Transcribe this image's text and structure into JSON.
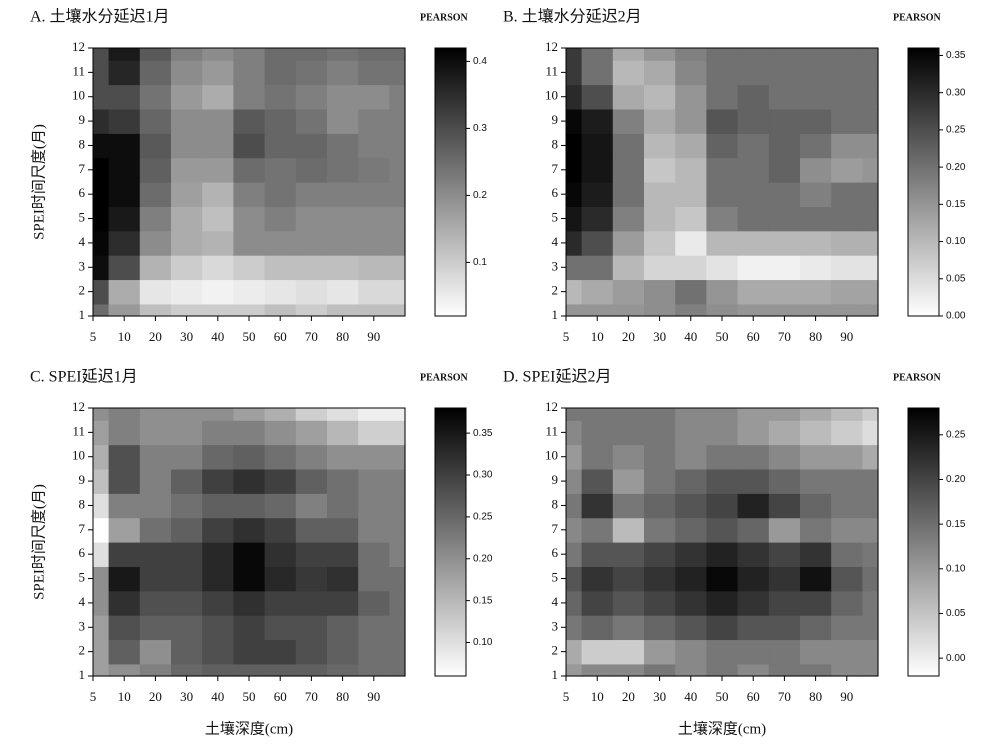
{
  "chart_data": [
    {
      "type": "heatmap",
      "title": "A. 土壤水分延迟1月",
      "colorbar_title": "PEARSON",
      "ylabel": "SPEI时间尺度(月)",
      "categories": [
        5,
        10,
        20,
        30,
        40,
        50,
        60,
        70,
        80,
        90,
        null
      ],
      "y": [
        1,
        2,
        3,
        4,
        5,
        6,
        7,
        8,
        9,
        10,
        11,
        12
      ],
      "ylim": [
        1,
        12
      ],
      "yticks": [
        1,
        2,
        3,
        4,
        5,
        6,
        7,
        8,
        9,
        10,
        11,
        12
      ],
      "zlim": [
        0.02,
        0.42
      ],
      "zticks": [
        0.1,
        0.2,
        0.3,
        0.4
      ],
      "values": [
        [
          0.25,
          0.18,
          0.12,
          0.1,
          0.1,
          0.1,
          0.12,
          0.1,
          0.12,
          0.12,
          0.12
        ],
        [
          0.3,
          0.15,
          0.06,
          0.05,
          0.04,
          0.05,
          0.06,
          0.07,
          0.06,
          0.08,
          0.08
        ],
        [
          0.4,
          0.3,
          0.14,
          0.1,
          0.08,
          0.1,
          0.12,
          0.12,
          0.12,
          0.13,
          0.13
        ],
        [
          0.41,
          0.35,
          0.2,
          0.15,
          0.14,
          0.2,
          0.2,
          0.2,
          0.2,
          0.2,
          0.2
        ],
        [
          0.42,
          0.38,
          0.22,
          0.15,
          0.12,
          0.2,
          0.22,
          0.2,
          0.2,
          0.2,
          0.2
        ],
        [
          0.42,
          0.4,
          0.25,
          0.17,
          0.14,
          0.22,
          0.24,
          0.22,
          0.22,
          0.22,
          0.22
        ],
        [
          0.42,
          0.4,
          0.27,
          0.18,
          0.18,
          0.25,
          0.24,
          0.25,
          0.24,
          0.23,
          0.22
        ],
        [
          0.4,
          0.4,
          0.28,
          0.2,
          0.2,
          0.3,
          0.26,
          0.26,
          0.24,
          0.22,
          0.22
        ],
        [
          0.35,
          0.33,
          0.26,
          0.2,
          0.2,
          0.28,
          0.26,
          0.24,
          0.2,
          0.22,
          0.22
        ],
        [
          0.3,
          0.3,
          0.24,
          0.18,
          0.15,
          0.22,
          0.24,
          0.22,
          0.2,
          0.2,
          0.22
        ],
        [
          0.3,
          0.36,
          0.26,
          0.2,
          0.18,
          0.22,
          0.25,
          0.24,
          0.22,
          0.24,
          0.24
        ],
        [
          0.3,
          0.38,
          0.28,
          0.22,
          0.2,
          0.22,
          0.25,
          0.25,
          0.24,
          0.25,
          0.25
        ]
      ]
    },
    {
      "type": "heatmap",
      "title": "B. 土壤水分延迟2月",
      "colorbar_title": "PEARSON",
      "categories": [
        5,
        10,
        20,
        30,
        40,
        50,
        60,
        70,
        80,
        90,
        null
      ],
      "y": [
        1,
        2,
        3,
        4,
        5,
        6,
        7,
        8,
        9,
        10,
        11,
        12
      ],
      "ylim": [
        1,
        12
      ],
      "yticks": [
        1,
        2,
        3,
        4,
        5,
        6,
        7,
        8,
        9,
        10,
        11,
        12
      ],
      "zlim": [
        0.0,
        0.36
      ],
      "zticks": [
        {
          "value": 0,
          "label": "0.00"
        },
        0.05,
        {
          "value": 0.1,
          "label": "0.10"
        },
        0.15,
        {
          "value": 0.2,
          "label": "0.20"
        },
        0.25,
        {
          "value": 0.3,
          "label": "0.30"
        },
        0.35
      ],
      "values": [
        [
          0.15,
          0.15,
          0.15,
          0.16,
          0.18,
          0.16,
          0.15,
          0.15,
          0.15,
          0.15,
          0.15
        ],
        [
          0.1,
          0.12,
          0.14,
          0.16,
          0.2,
          0.15,
          0.12,
          0.12,
          0.12,
          0.13,
          0.13
        ],
        [
          0.2,
          0.2,
          0.1,
          0.06,
          0.06,
          0.04,
          0.02,
          0.02,
          0.03,
          0.04,
          0.04
        ],
        [
          0.3,
          0.25,
          0.14,
          0.08,
          0.03,
          0.1,
          0.1,
          0.1,
          0.1,
          0.11,
          0.11
        ],
        [
          0.33,
          0.3,
          0.18,
          0.1,
          0.08,
          0.18,
          0.2,
          0.2,
          0.2,
          0.2,
          0.2
        ],
        [
          0.35,
          0.32,
          0.2,
          0.1,
          0.1,
          0.2,
          0.2,
          0.2,
          0.18,
          0.2,
          0.2
        ],
        [
          0.36,
          0.33,
          0.2,
          0.08,
          0.1,
          0.2,
          0.2,
          0.22,
          0.16,
          0.14,
          0.15
        ],
        [
          0.36,
          0.33,
          0.2,
          0.1,
          0.12,
          0.22,
          0.2,
          0.22,
          0.2,
          0.16,
          0.16
        ],
        [
          0.35,
          0.32,
          0.18,
          0.12,
          0.15,
          0.24,
          0.22,
          0.22,
          0.22,
          0.2,
          0.2
        ],
        [
          0.3,
          0.25,
          0.12,
          0.1,
          0.15,
          0.2,
          0.22,
          0.2,
          0.2,
          0.2,
          0.2
        ],
        [
          0.28,
          0.2,
          0.1,
          0.12,
          0.17,
          0.2,
          0.2,
          0.2,
          0.2,
          0.2,
          0.2
        ],
        [
          0.28,
          0.2,
          0.12,
          0.15,
          0.18,
          0.2,
          0.2,
          0.2,
          0.2,
          0.2,
          0.2
        ]
      ]
    },
    {
      "type": "heatmap",
      "title": "C. SPEI延迟1月",
      "colorbar_title": "PEARSON",
      "ylabel": "SPEI时间尺度(月)",
      "xlabel": "土壤深度(cm)",
      "categories": [
        5,
        10,
        20,
        30,
        40,
        50,
        60,
        70,
        80,
        90,
        null
      ],
      "y": [
        1,
        2,
        3,
        4,
        5,
        6,
        7,
        8,
        9,
        10,
        11,
        12
      ],
      "ylim": [
        1,
        12
      ],
      "yticks": [
        1,
        2,
        3,
        4,
        5,
        6,
        7,
        8,
        9,
        10,
        11,
        12
      ],
      "zlim": [
        0.06,
        0.38
      ],
      "zticks": [
        {
          "value": 0.1,
          "label": "0.10"
        },
        0.15,
        {
          "value": 0.2,
          "label": "0.20"
        },
        0.25,
        {
          "value": 0.3,
          "label": "0.30"
        },
        0.35
      ],
      "values": [
        [
          0.18,
          0.2,
          0.22,
          0.25,
          0.26,
          0.26,
          0.26,
          0.26,
          0.25,
          0.24,
          0.24
        ],
        [
          0.18,
          0.26,
          0.2,
          0.26,
          0.28,
          0.3,
          0.3,
          0.28,
          0.26,
          0.24,
          0.24
        ],
        [
          0.18,
          0.28,
          0.26,
          0.26,
          0.28,
          0.3,
          0.28,
          0.28,
          0.26,
          0.24,
          0.24
        ],
        [
          0.2,
          0.32,
          0.28,
          0.28,
          0.3,
          0.32,
          0.3,
          0.3,
          0.3,
          0.26,
          0.24
        ],
        [
          0.2,
          0.35,
          0.3,
          0.3,
          0.33,
          0.37,
          0.33,
          0.31,
          0.32,
          0.24,
          0.24
        ],
        [
          0.1,
          0.3,
          0.3,
          0.3,
          0.33,
          0.37,
          0.32,
          0.3,
          0.3,
          0.24,
          0.22
        ],
        [
          0.06,
          0.18,
          0.24,
          0.26,
          0.3,
          0.32,
          0.3,
          0.26,
          0.26,
          0.22,
          0.22
        ],
        [
          0.1,
          0.22,
          0.22,
          0.24,
          0.26,
          0.26,
          0.25,
          0.22,
          0.24,
          0.22,
          0.22
        ],
        [
          0.14,
          0.28,
          0.22,
          0.26,
          0.3,
          0.32,
          0.3,
          0.26,
          0.24,
          0.22,
          0.22
        ],
        [
          0.16,
          0.28,
          0.22,
          0.22,
          0.25,
          0.26,
          0.24,
          0.22,
          0.2,
          0.2,
          0.2
        ],
        [
          0.18,
          0.22,
          0.2,
          0.2,
          0.22,
          0.22,
          0.2,
          0.18,
          0.15,
          0.12,
          0.12
        ],
        [
          0.2,
          0.22,
          0.2,
          0.2,
          0.2,
          0.18,
          0.16,
          0.12,
          0.1,
          0.08,
          0.08
        ]
      ]
    },
    {
      "type": "heatmap",
      "title": "D. SPEI延迟2月",
      "colorbar_title": "PEARSON",
      "xlabel": "土壤深度(cm)",
      "categories": [
        5,
        10,
        20,
        30,
        40,
        50,
        60,
        70,
        80,
        90,
        null
      ],
      "y": [
        1,
        2,
        3,
        4,
        5,
        6,
        7,
        8,
        9,
        10,
        11,
        12
      ],
      "ylim": [
        1,
        12
      ],
      "yticks": [
        1,
        2,
        3,
        4,
        5,
        6,
        7,
        8,
        9,
        10,
        11,
        12
      ],
      "zlim": [
        -0.02,
        0.28
      ],
      "zticks": [
        {
          "value": 0,
          "label": "0.00"
        },
        0.05,
        {
          "value": 0.1,
          "label": "0.10"
        },
        0.15,
        {
          "value": 0.2,
          "label": "0.20"
        },
        0.25
      ],
      "values": [
        [
          0.1,
          0.12,
          0.12,
          0.14,
          0.12,
          0.14,
          0.12,
          0.14,
          0.14,
          0.12,
          0.12
        ],
        [
          0.08,
          0.04,
          0.04,
          0.1,
          0.12,
          0.14,
          0.14,
          0.14,
          0.12,
          0.12,
          0.12
        ],
        [
          0.14,
          0.16,
          0.14,
          0.16,
          0.18,
          0.2,
          0.18,
          0.18,
          0.16,
          0.14,
          0.14
        ],
        [
          0.16,
          0.2,
          0.18,
          0.2,
          0.22,
          0.24,
          0.22,
          0.2,
          0.2,
          0.16,
          0.14
        ],
        [
          0.18,
          0.22,
          0.2,
          0.22,
          0.24,
          0.27,
          0.24,
          0.22,
          0.26,
          0.18,
          0.15
        ],
        [
          0.14,
          0.18,
          0.18,
          0.2,
          0.22,
          0.24,
          0.22,
          0.2,
          0.22,
          0.15,
          0.14
        ],
        [
          0.12,
          0.14,
          0.06,
          0.14,
          0.16,
          0.18,
          0.16,
          0.1,
          0.14,
          0.12,
          0.12
        ],
        [
          0.14,
          0.22,
          0.14,
          0.16,
          0.18,
          0.2,
          0.24,
          0.2,
          0.16,
          0.14,
          0.14
        ],
        [
          0.12,
          0.18,
          0.1,
          0.14,
          0.16,
          0.18,
          0.18,
          0.16,
          0.14,
          0.14,
          0.14
        ],
        [
          0.1,
          0.14,
          0.12,
          0.14,
          0.12,
          0.14,
          0.14,
          0.12,
          0.1,
          0.1,
          0.08
        ],
        [
          0.12,
          0.14,
          0.14,
          0.14,
          0.12,
          0.12,
          0.1,
          0.08,
          0.06,
          0.04,
          0.02
        ],
        [
          0.14,
          0.14,
          0.14,
          0.14,
          0.12,
          0.12,
          0.1,
          0.1,
          0.08,
          0.06,
          0.04
        ]
      ]
    }
  ]
}
